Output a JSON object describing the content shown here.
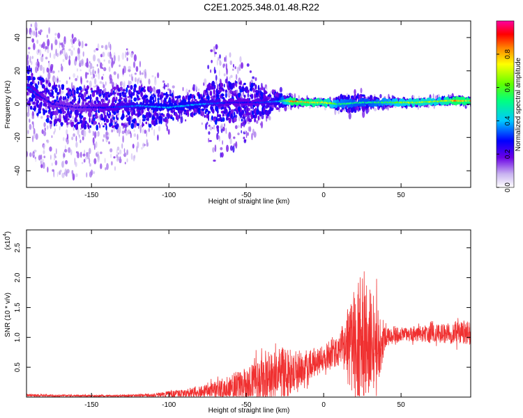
{
  "title": "C2E1.2025.348.01.48.R22",
  "colors": {
    "snr_line": "#f03030",
    "axis": "#000000",
    "low_spectrum": "#c9b4f0",
    "mid_spectrum": "#6a00e6"
  },
  "chart_data": [
    {
      "type": "heatmap",
      "title": "C2E1.2025.348.01.48.R22",
      "xlabel": "Height of straight line (km)",
      "ylabel": "Frequency (Hz)",
      "xlim": [
        -192,
        95
      ],
      "ylim": [
        -50,
        50
      ],
      "x_ticks": [
        -150,
        -100,
        -50,
        0,
        50
      ],
      "x_tick_labels": [
        "-150",
        "-100",
        "-50",
        "0",
        "50"
      ],
      "y_ticks": [
        -40,
        -20,
        0,
        20,
        40
      ],
      "y_tick_labels": [
        "-40",
        "-20",
        "0",
        "20",
        "40"
      ],
      "colorbar": {
        "label": "Normalized spectral amplitude",
        "range": [
          0,
          1
        ],
        "ticks": [
          0.0,
          0.2,
          0.4,
          0.6,
          0.8
        ],
        "tick_labels": [
          "0.0",
          "0.2",
          "0.4",
          "0.6",
          "0.8"
        ],
        "colormap": "magenta-red-yellow-green-cyan-blue-purple-white"
      },
      "ridge": {
        "frequency_hz": [
          [
            -190,
            10
          ],
          [
            -185,
            6
          ],
          [
            -175,
            0
          ],
          [
            -160,
            -2
          ],
          [
            -140,
            -2
          ],
          [
            -120,
            -1
          ],
          [
            -100,
            -2
          ],
          [
            -80,
            0
          ],
          [
            -60,
            1
          ],
          [
            -40,
            1
          ],
          [
            -25,
            2
          ],
          [
            -10,
            1
          ],
          [
            0,
            1
          ],
          [
            10,
            0
          ],
          [
            25,
            1
          ],
          [
            40,
            1
          ],
          [
            60,
            1
          ],
          [
            80,
            2
          ],
          [
            95,
            2
          ]
        ],
        "amplitude": [
          [
            -190,
            0.35
          ],
          [
            -180,
            0.28
          ],
          [
            -160,
            0.25
          ],
          [
            -140,
            0.3
          ],
          [
            -120,
            0.4
          ],
          [
            -100,
            0.45
          ],
          [
            -80,
            0.42
          ],
          [
            -60,
            0.3
          ],
          [
            -45,
            0.3
          ],
          [
            -30,
            0.4
          ],
          [
            -20,
            0.9
          ],
          [
            -10,
            0.85
          ],
          [
            0,
            0.8
          ],
          [
            10,
            0.6
          ],
          [
            20,
            0.55
          ],
          [
            30,
            0.55
          ],
          [
            45,
            0.65
          ],
          [
            60,
            0.75
          ],
          [
            75,
            0.7
          ],
          [
            85,
            0.9
          ],
          [
            95,
            0.85
          ]
        ]
      },
      "spread": {
        "frequency_spread_hz": [
          [
            -190,
            40
          ],
          [
            -175,
            45
          ],
          [
            -150,
            40
          ],
          [
            -125,
            35
          ],
          [
            -110,
            20
          ],
          [
            -90,
            10
          ],
          [
            -78,
            12
          ],
          [
            -72,
            35
          ],
          [
            -60,
            30
          ],
          [
            -45,
            20
          ],
          [
            -35,
            12
          ],
          [
            -25,
            5
          ],
          [
            -10,
            3
          ],
          [
            5,
            3
          ],
          [
            10,
            8
          ],
          [
            25,
            8
          ],
          [
            35,
            4
          ],
          [
            60,
            3
          ],
          [
            95,
            3
          ]
        ]
      }
    },
    {
      "type": "line",
      "xlabel": "Height of straight line (km)",
      "ylabel": "SNR (10 * v/v)",
      "y_multiplier_label": "(x10",
      "y_multiplier_exponent": "4",
      "xlim": [
        -192,
        95
      ],
      "ylim": [
        0,
        2.8
      ],
      "x_ticks": [
        -150,
        -100,
        -50,
        0,
        50
      ],
      "x_tick_labels": [
        "-150",
        "-100",
        "-50",
        "0",
        "50"
      ],
      "y_ticks": [
        0.5,
        1.0,
        1.5,
        2.0,
        2.5
      ],
      "y_tick_labels": [
        "0.5",
        "1.0",
        "1.5",
        "2.0",
        "2.5"
      ],
      "series": [
        {
          "color": "#f03030",
          "envelope": {
            "x": [
              -192,
              -160,
              -130,
              -110,
              -100,
              -90,
              -80,
              -70,
              -60,
              -50,
              -40,
              -30,
              -25,
              -20,
              -10,
              0,
              10,
              15,
              18,
              22,
              26,
              30,
              35,
              40,
              50,
              60,
              70,
              80,
              90,
              95
            ],
            "base": [
              0.03,
              0.02,
              0.02,
              0.03,
              0.05,
              0.06,
              0.08,
              0.1,
              0.15,
              0.2,
              0.3,
              0.35,
              0.35,
              0.42,
              0.55,
              0.65,
              0.78,
              0.85,
              0.9,
              0.95,
              0.9,
              0.85,
              0.9,
              1.0,
              1.05,
              1.05,
              1.05,
              1.07,
              1.08,
              1.05
            ],
            "amp": [
              0.02,
              0.02,
              0.02,
              0.03,
              0.05,
              0.07,
              0.1,
              0.15,
              0.25,
              0.3,
              0.35,
              0.45,
              0.5,
              0.35,
              0.25,
              0.25,
              0.25,
              0.6,
              0.8,
              1.0,
              1.25,
              1.0,
              0.7,
              0.15,
              0.12,
              0.12,
              0.15,
              0.18,
              0.2,
              0.25
            ]
          }
        }
      ]
    }
  ]
}
